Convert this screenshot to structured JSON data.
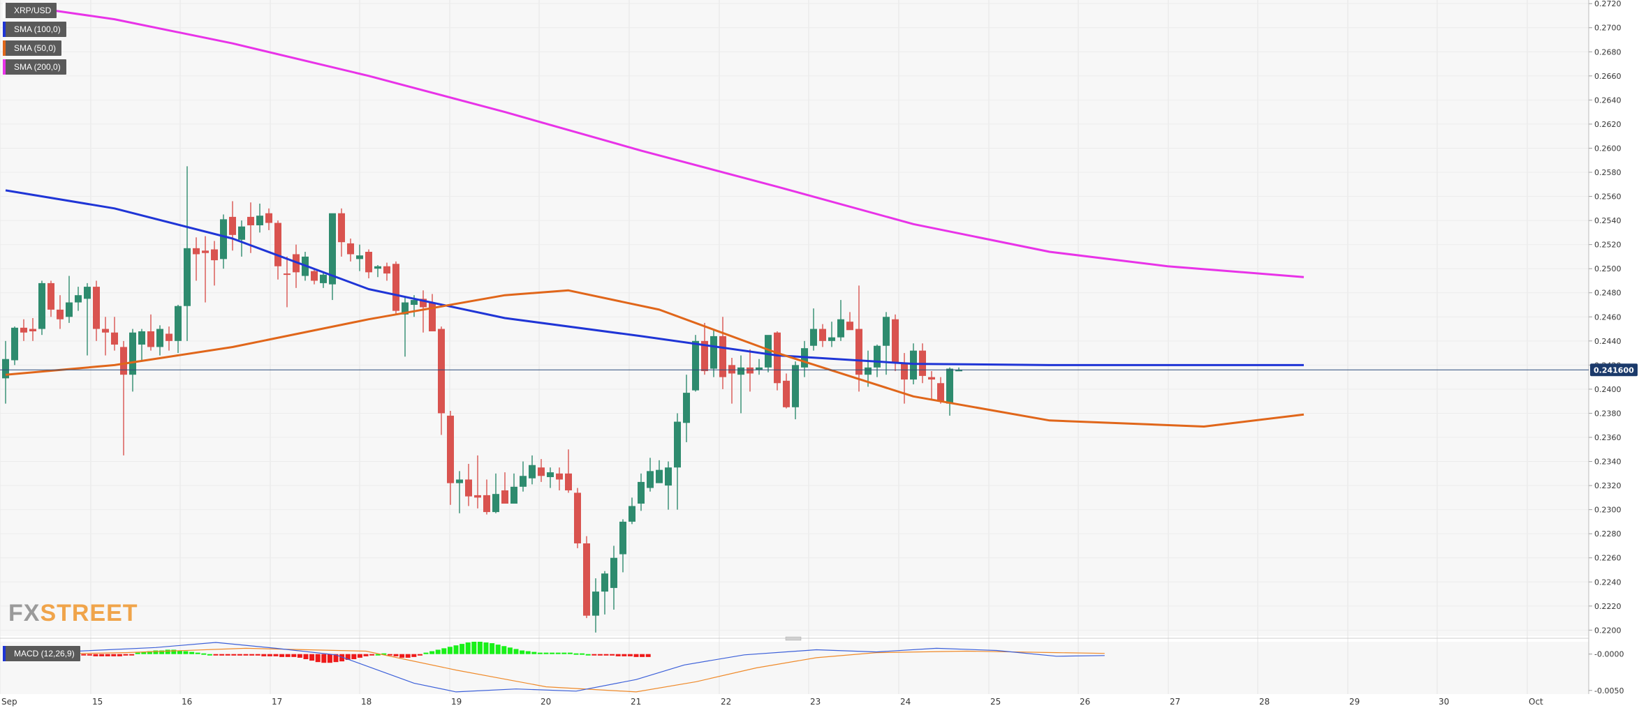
{
  "legend": [
    {
      "label": "XRP/USD",
      "color": "#ffffff"
    },
    {
      "label": "SMA (100,0)",
      "color": "#1f35d6"
    },
    {
      "label": "SMA (50,0)",
      "color": "#e0661a"
    },
    {
      "label": "SMA (200,0)",
      "color": "#e833e8"
    }
  ],
  "macd_label": "MACD (12,26,9)",
  "watermark": {
    "fx": "FX",
    "street": "STREET"
  },
  "colors": {
    "up": "#2e8b6e",
    "down": "#d9534f",
    "sma100": "#1f35d6",
    "sma50": "#e0661a",
    "sma200": "#e833e8",
    "hist_pos": "#18f018",
    "hist_neg": "#ee1a1a",
    "macd_line": "#3b5fd9",
    "signal_line": "#ef8a2a"
  },
  "chart_data": {
    "type": "candlestick",
    "symbol": "XRP/USD",
    "ylim": [
      0.2195,
      0.2723
    ],
    "y_ticks": [
      "0.2720",
      "0.2700",
      "0.2680",
      "0.2660",
      "0.2640",
      "0.2620",
      "0.2600",
      "0.2580",
      "0.2560",
      "0.2540",
      "0.2520",
      "0.2500",
      "0.2480",
      "0.2460",
      "0.2440",
      "0.2420",
      "0.2400",
      "0.2380",
      "0.2360",
      "0.2340",
      "0.2320",
      "0.2300",
      "0.2280",
      "0.2260",
      "0.2240",
      "0.2220",
      "0.2200"
    ],
    "x_labels": [
      "Sep",
      "15",
      "16",
      "17",
      "18",
      "19",
      "20",
      "21",
      "22",
      "23",
      "24",
      "25",
      "26",
      "27",
      "28",
      "29",
      "30",
      "Oct"
    ],
    "current_price": "0.241600",
    "candles": [
      {
        "o": 0.2409,
        "h": 0.244,
        "l": 0.2388,
        "c": 0.2425
      },
      {
        "o": 0.2424,
        "h": 0.2452,
        "l": 0.242,
        "c": 0.2451
      },
      {
        "o": 0.2451,
        "h": 0.2458,
        "l": 0.244,
        "c": 0.2447
      },
      {
        "o": 0.245,
        "h": 0.2459,
        "l": 0.244,
        "c": 0.2448
      },
      {
        "o": 0.245,
        "h": 0.249,
        "l": 0.2445,
        "c": 0.2488
      },
      {
        "o": 0.2488,
        "h": 0.249,
        "l": 0.246,
        "c": 0.2466
      },
      {
        "o": 0.2466,
        "h": 0.2478,
        "l": 0.245,
        "c": 0.2458
      },
      {
        "o": 0.246,
        "h": 0.2494,
        "l": 0.2455,
        "c": 0.2472
      },
      {
        "o": 0.2472,
        "h": 0.2485,
        "l": 0.2465,
        "c": 0.2478
      },
      {
        "o": 0.2475,
        "h": 0.2488,
        "l": 0.2428,
        "c": 0.2485
      },
      {
        "o": 0.2485,
        "h": 0.249,
        "l": 0.244,
        "c": 0.245
      },
      {
        "o": 0.245,
        "h": 0.246,
        "l": 0.2428,
        "c": 0.2447
      },
      {
        "o": 0.2447,
        "h": 0.246,
        "l": 0.2432,
        "c": 0.2437
      },
      {
        "o": 0.2435,
        "h": 0.244,
        "l": 0.2345,
        "c": 0.2412
      },
      {
        "o": 0.2412,
        "h": 0.245,
        "l": 0.2398,
        "c": 0.2447
      },
      {
        "o": 0.2437,
        "h": 0.245,
        "l": 0.2424,
        "c": 0.2448
      },
      {
        "o": 0.2448,
        "h": 0.2462,
        "l": 0.2432,
        "c": 0.2435
      },
      {
        "o": 0.2435,
        "h": 0.2453,
        "l": 0.2428,
        "c": 0.245
      },
      {
        "o": 0.2446,
        "h": 0.2452,
        "l": 0.2432,
        "c": 0.244
      },
      {
        "o": 0.244,
        "h": 0.247,
        "l": 0.243,
        "c": 0.2469
      },
      {
        "o": 0.2469,
        "h": 0.2585,
        "l": 0.244,
        "c": 0.2517
      },
      {
        "o": 0.2517,
        "h": 0.2526,
        "l": 0.249,
        "c": 0.2512
      },
      {
        "o": 0.2515,
        "h": 0.2527,
        "l": 0.2472,
        "c": 0.2513
      },
      {
        "o": 0.2516,
        "h": 0.2523,
        "l": 0.2486,
        "c": 0.2507
      },
      {
        "o": 0.2508,
        "h": 0.2545,
        "l": 0.25,
        "c": 0.2541
      },
      {
        "o": 0.2543,
        "h": 0.2556,
        "l": 0.2515,
        "c": 0.2528
      },
      {
        "o": 0.2524,
        "h": 0.254,
        "l": 0.251,
        "c": 0.2535
      },
      {
        "o": 0.2543,
        "h": 0.2555,
        "l": 0.2513,
        "c": 0.2536
      },
      {
        "o": 0.2536,
        "h": 0.2554,
        "l": 0.253,
        "c": 0.2544
      },
      {
        "o": 0.2546,
        "h": 0.255,
        "l": 0.2532,
        "c": 0.2538
      },
      {
        "o": 0.2538,
        "h": 0.254,
        "l": 0.2491,
        "c": 0.2502
      },
      {
        "o": 0.2496,
        "h": 0.251,
        "l": 0.2468,
        "c": 0.2495
      },
      {
        "o": 0.2512,
        "h": 0.252,
        "l": 0.2484,
        "c": 0.2497
      },
      {
        "o": 0.2494,
        "h": 0.2514,
        "l": 0.249,
        "c": 0.251
      },
      {
        "o": 0.2498,
        "h": 0.25,
        "l": 0.2487,
        "c": 0.249
      },
      {
        "o": 0.2488,
        "h": 0.2497,
        "l": 0.2484,
        "c": 0.2495
      },
      {
        "o": 0.2487,
        "h": 0.2545,
        "l": 0.2474,
        "c": 0.2546
      },
      {
        "o": 0.2546,
        "h": 0.255,
        "l": 0.251,
        "c": 0.2522
      },
      {
        "o": 0.2521,
        "h": 0.2525,
        "l": 0.2506,
        "c": 0.2512
      },
      {
        "o": 0.2508,
        "h": 0.252,
        "l": 0.2498,
        "c": 0.2511
      },
      {
        "o": 0.2514,
        "h": 0.2516,
        "l": 0.2492,
        "c": 0.2497
      },
      {
        "o": 0.25,
        "h": 0.2503,
        "l": 0.2493,
        "c": 0.2502
      },
      {
        "o": 0.2502,
        "h": 0.2505,
        "l": 0.249,
        "c": 0.2496
      },
      {
        "o": 0.2504,
        "h": 0.2506,
        "l": 0.2462,
        "c": 0.2465
      },
      {
        "o": 0.2462,
        "h": 0.2476,
        "l": 0.2427,
        "c": 0.2472
      },
      {
        "o": 0.247,
        "h": 0.2478,
        "l": 0.246,
        "c": 0.2474
      },
      {
        "o": 0.2475,
        "h": 0.2482,
        "l": 0.2447,
        "c": 0.2468
      },
      {
        "o": 0.2472,
        "h": 0.2479,
        "l": 0.245,
        "c": 0.2448
      },
      {
        "o": 0.245,
        "h": 0.2452,
        "l": 0.2362,
        "c": 0.238
      },
      {
        "o": 0.2378,
        "h": 0.2382,
        "l": 0.2304,
        "c": 0.2322
      },
      {
        "o": 0.2322,
        "h": 0.2332,
        "l": 0.2297,
        "c": 0.2325
      },
      {
        "o": 0.2325,
        "h": 0.2338,
        "l": 0.2303,
        "c": 0.2311
      },
      {
        "o": 0.2312,
        "h": 0.2345,
        "l": 0.2301,
        "c": 0.231
      },
      {
        "o": 0.2312,
        "h": 0.2325,
        "l": 0.2296,
        "c": 0.2298
      },
      {
        "o": 0.2298,
        "h": 0.233,
        "l": 0.2297,
        "c": 0.2313
      },
      {
        "o": 0.2316,
        "h": 0.2331,
        "l": 0.2307,
        "c": 0.2305
      },
      {
        "o": 0.2305,
        "h": 0.233,
        "l": 0.2306,
        "c": 0.2319
      },
      {
        "o": 0.2319,
        "h": 0.234,
        "l": 0.2315,
        "c": 0.2328
      },
      {
        "o": 0.2326,
        "h": 0.2345,
        "l": 0.2321,
        "c": 0.2337
      },
      {
        "o": 0.2335,
        "h": 0.2342,
        "l": 0.2323,
        "c": 0.2328
      },
      {
        "o": 0.2327,
        "h": 0.2335,
        "l": 0.2318,
        "c": 0.2331
      },
      {
        "o": 0.233,
        "h": 0.2335,
        "l": 0.2316,
        "c": 0.2325
      },
      {
        "o": 0.233,
        "h": 0.235,
        "l": 0.2314,
        "c": 0.2316
      },
      {
        "o": 0.2314,
        "h": 0.2318,
        "l": 0.2268,
        "c": 0.2272
      },
      {
        "o": 0.2272,
        "h": 0.2278,
        "l": 0.221,
        "c": 0.2212
      },
      {
        "o": 0.2212,
        "h": 0.2243,
        "l": 0.2198,
        "c": 0.2232
      },
      {
        "o": 0.2232,
        "h": 0.2249,
        "l": 0.2213,
        "c": 0.2247
      },
      {
        "o": 0.2235,
        "h": 0.227,
        "l": 0.2217,
        "c": 0.226
      },
      {
        "o": 0.2263,
        "h": 0.2292,
        "l": 0.2248,
        "c": 0.229
      },
      {
        "o": 0.229,
        "h": 0.231,
        "l": 0.2288,
        "c": 0.2303
      },
      {
        "o": 0.2305,
        "h": 0.233,
        "l": 0.2299,
        "c": 0.2323
      },
      {
        "o": 0.2318,
        "h": 0.2343,
        "l": 0.2315,
        "c": 0.2332
      },
      {
        "o": 0.2322,
        "h": 0.2341,
        "l": 0.2325,
        "c": 0.2333
      },
      {
        "o": 0.232,
        "h": 0.234,
        "l": 0.23,
        "c": 0.2335
      },
      {
        "o": 0.2335,
        "h": 0.238,
        "l": 0.23,
        "c": 0.2373
      },
      {
        "o": 0.2372,
        "h": 0.2412,
        "l": 0.2356,
        "c": 0.2397
      },
      {
        "o": 0.2399,
        "h": 0.2445,
        "l": 0.2398,
        "c": 0.244
      },
      {
        "o": 0.244,
        "h": 0.2455,
        "l": 0.2412,
        "c": 0.2415
      },
      {
        "o": 0.2417,
        "h": 0.245,
        "l": 0.241,
        "c": 0.2444
      },
      {
        "o": 0.2444,
        "h": 0.246,
        "l": 0.24,
        "c": 0.241
      },
      {
        "o": 0.242,
        "h": 0.2426,
        "l": 0.2388,
        "c": 0.2413
      },
      {
        "o": 0.2412,
        "h": 0.2428,
        "l": 0.238,
        "c": 0.2418
      },
      {
        "o": 0.2418,
        "h": 0.2433,
        "l": 0.2398,
        "c": 0.2413
      },
      {
        "o": 0.2416,
        "h": 0.2425,
        "l": 0.2412,
        "c": 0.2418
      },
      {
        "o": 0.2418,
        "h": 0.2444,
        "l": 0.2414,
        "c": 0.2445
      },
      {
        "o": 0.2447,
        "h": 0.2448,
        "l": 0.2399,
        "c": 0.2405
      },
      {
        "o": 0.2407,
        "h": 0.2413,
        "l": 0.2384,
        "c": 0.2385
      },
      {
        "o": 0.2385,
        "h": 0.2423,
        "l": 0.2375,
        "c": 0.242
      },
      {
        "o": 0.2418,
        "h": 0.244,
        "l": 0.241,
        "c": 0.2434
      },
      {
        "o": 0.2436,
        "h": 0.2467,
        "l": 0.2432,
        "c": 0.245
      },
      {
        "o": 0.245,
        "h": 0.2454,
        "l": 0.2435,
        "c": 0.244
      },
      {
        "o": 0.244,
        "h": 0.2456,
        "l": 0.2435,
        "c": 0.2443
      },
      {
        "o": 0.2443,
        "h": 0.2474,
        "l": 0.244,
        "c": 0.2458
      },
      {
        "o": 0.2456,
        "h": 0.2464,
        "l": 0.245,
        "c": 0.2449
      },
      {
        "o": 0.245,
        "h": 0.2486,
        "l": 0.2398,
        "c": 0.2412
      },
      {
        "o": 0.2412,
        "h": 0.2432,
        "l": 0.2402,
        "c": 0.2418
      },
      {
        "o": 0.2418,
        "h": 0.2437,
        "l": 0.241,
        "c": 0.2436
      },
      {
        "o": 0.2436,
        "h": 0.2464,
        "l": 0.2412,
        "c": 0.246
      },
      {
        "o": 0.2458,
        "h": 0.2462,
        "l": 0.2415,
        "c": 0.2422
      },
      {
        "o": 0.2422,
        "h": 0.243,
        "l": 0.2388,
        "c": 0.2408
      },
      {
        "o": 0.2408,
        "h": 0.2438,
        "l": 0.2404,
        "c": 0.2432
      },
      {
        "o": 0.2432,
        "h": 0.2438,
        "l": 0.2405,
        "c": 0.2411
      },
      {
        "o": 0.241,
        "h": 0.2415,
        "l": 0.2391,
        "c": 0.2408
      },
      {
        "o": 0.2405,
        "h": 0.241,
        "l": 0.2388,
        "c": 0.239
      },
      {
        "o": 0.2388,
        "h": 0.2418,
        "l": 0.2378,
        "c": 0.2417
      },
      {
        "o": 0.2416,
        "h": 0.2418,
        "l": 0.2415,
        "c": 0.2416
      }
    ],
    "sma200": [
      [
        0,
        0.272
      ],
      [
        12,
        0.2707
      ],
      [
        25,
        0.2687
      ],
      [
        40,
        0.266
      ],
      [
        55,
        0.263
      ],
      [
        70,
        0.2598
      ],
      [
        85,
        0.2568
      ],
      [
        100,
        0.2537
      ],
      [
        115,
        0.2514
      ],
      [
        128,
        0.2502
      ],
      [
        143,
        0.2493
      ]
    ],
    "sma100": [
      [
        0,
        0.2565
      ],
      [
        12,
        0.255
      ],
      [
        25,
        0.2525
      ],
      [
        40,
        0.2483
      ],
      [
        55,
        0.2459
      ],
      [
        70,
        0.2444
      ],
      [
        85,
        0.2428
      ],
      [
        100,
        0.2421
      ],
      [
        115,
        0.242
      ],
      [
        128,
        0.242
      ],
      [
        143,
        0.242
      ]
    ],
    "sma50": [
      [
        0,
        0.2412
      ],
      [
        12,
        0.242
      ],
      [
        25,
        0.2435
      ],
      [
        40,
        0.2458
      ],
      [
        55,
        0.2478
      ],
      [
        62,
        0.2482
      ],
      [
        72,
        0.2466
      ],
      [
        85,
        0.243
      ],
      [
        100,
        0.2394
      ],
      [
        115,
        0.2374
      ],
      [
        132,
        0.2369
      ],
      [
        143,
        0.2379
      ]
    ],
    "macd": {
      "ylim": [
        -0.0055,
        0.0017
      ],
      "y_ticks": [
        "-0.0000",
        "-0.0050"
      ],
      "histogram_start_index": 1,
      "histogram": [
        -0.0001,
        -0.0001,
        -0.0001,
        -0.0001,
        -0.0001,
        0.0001,
        0.0001,
        0.0001,
        0.0001,
        5e-05,
        5e-05,
        0.0,
        -0.0001,
        -0.0002,
        -0.0003,
        -0.0003,
        -0.0003,
        -0.0003,
        -0.0003,
        -0.0002,
        -0.0001,
        0.0002,
        0.0003,
        0.0004,
        0.0005,
        0.0005,
        0.0006,
        0.0006,
        0.0005,
        0.0004,
        0.0003,
        0.0002,
        0.0001,
        0.0,
        -0.0001,
        -0.0002,
        -0.0002,
        -0.0002,
        -0.0002,
        -0.0002,
        -0.0002,
        -0.0002,
        -0.0003,
        -0.0003,
        -0.0003,
        -0.0004,
        -0.0004,
        -0.0004,
        -0.0005,
        -0.0007,
        -0.0009,
        -0.0011,
        -0.0012,
        -0.0012,
        -0.0011,
        -0.001,
        -0.0008,
        -0.0007,
        -0.0005,
        -0.0003,
        -0.0001,
        0.0,
        0.0001,
        -0.0001,
        -0.0003,
        -0.0005,
        -0.0005,
        -0.0004,
        -0.0002,
        0.0002,
        0.0004,
        0.0006,
        0.0008,
        0.001,
        0.0012,
        0.0014,
        0.0016,
        0.0017,
        0.0017,
        0.0016,
        0.0015,
        0.0013,
        0.0011,
        0.0009,
        0.0007,
        0.0005,
        0.0004,
        0.0003,
        0.0002,
        0.0002,
        0.0002,
        0.0002,
        0.0002,
        0.0002,
        0.0001,
        0.0001,
        0.0,
        -0.0001,
        -0.0002,
        -0.0002,
        -0.0002,
        -0.0003,
        -0.0003,
        -0.0003,
        -0.0004,
        -0.0004,
        -0.0004
      ],
      "macd_line": [
        [
          0,
          0.0005
        ],
        [
          12,
          0.0004
        ],
        [
          25,
          0.0009
        ],
        [
          35,
          0.0016
        ],
        [
          45,
          0.0008
        ],
        [
          55,
          -0.0001
        ],
        [
          68,
          -0.004
        ],
        [
          75,
          -0.0052
        ],
        [
          85,
          -0.0048
        ],
        [
          95,
          -0.0051
        ],
        [
          105,
          -0.0035
        ],
        [
          113,
          -0.0015
        ],
        [
          123,
          -0.0001
        ],
        [
          135,
          0.0006
        ],
        [
          145,
          0.0003
        ],
        [
          155,
          0.0008
        ],
        [
          165,
          0.0005
        ],
        [
          175,
          -0.0003
        ],
        [
          183,
          -0.0002
        ]
      ],
      "signal_line": [
        [
          0,
          -0.0001
        ],
        [
          20,
          0.0002
        ],
        [
          40,
          0.0008
        ],
        [
          60,
          0.0004
        ],
        [
          75,
          -0.0022
        ],
        [
          90,
          -0.0045
        ],
        [
          105,
          -0.0052
        ],
        [
          115,
          -0.0038
        ],
        [
          125,
          -0.0019
        ],
        [
          135,
          -0.0005
        ],
        [
          145,
          0.0002
        ],
        [
          160,
          0.0004
        ],
        [
          175,
          0.0002
        ],
        [
          183,
          0.0001
        ]
      ]
    }
  }
}
